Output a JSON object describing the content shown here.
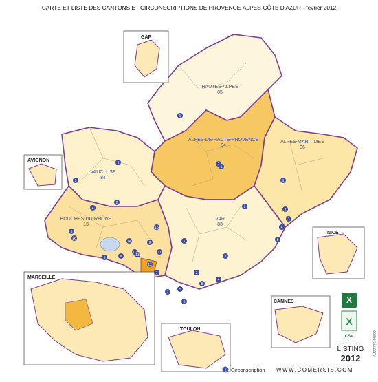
{
  "title": "CARTE ET LISTE DES CANTONS ET CIRCONSCRIPTIONS DE PROVENCE-ALPES-CÔTE D'AZUR - février 2012",
  "departments": [
    {
      "name": "HAUTES-ALPES",
      "code": "05"
    },
    {
      "name": "ALPES-DE-HAUTE-PROVENCE",
      "code": "04"
    },
    {
      "name": "ALPES-MARITIMES",
      "code": "06"
    },
    {
      "name": "VAUCLUSE",
      "code": "84"
    },
    {
      "name": "BOUCHES-DU-RHÔNE",
      "code": "13"
    },
    {
      "name": "VAR",
      "code": "83"
    }
  ],
  "insets": [
    "GAP",
    "AVIGNON",
    "MARSEILLE",
    "TOULON",
    "CANNES",
    "NICE"
  ],
  "circonscriptions": [
    "1",
    "2",
    "1",
    "2",
    "1",
    "2",
    "3",
    "4",
    "5",
    "1",
    "2",
    "3",
    "4",
    "5",
    "6",
    "7",
    "8",
    "9",
    "10",
    "11",
    "12",
    "13",
    "14",
    "15",
    "16",
    "1",
    "2",
    "3",
    "4",
    "5",
    "6",
    "7",
    "8"
  ],
  "legend": {
    "marker": "1",
    "label": "Circonscription"
  },
  "footer": {
    "site": "WWW.COMERSIS.COM",
    "listing": "LISTING",
    "year": "2012",
    "csv": "CSV",
    "side": "comersis.com"
  }
}
